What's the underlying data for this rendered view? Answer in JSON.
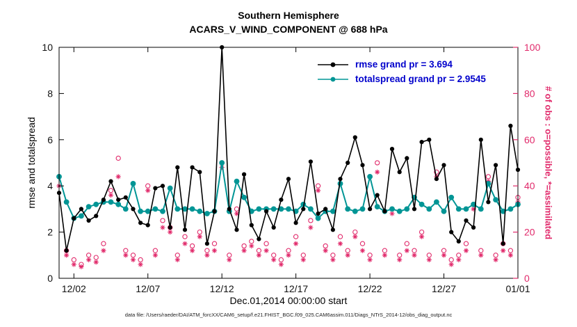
{
  "figure": {
    "title": "Southern Hemisphere",
    "subtitle": "ACARS_V_WIND_COMPONENT @ 688 hPa",
    "xlabel": "Dec.01,2014 00:00:00 start",
    "ylabel_left": "rmse and totalspread",
    "ylabel_right": "# of obs : o=possible, *=assimilated",
    "footer": "data file: /Users/raeder/DAI/ATM_forcXX/CAM6_setup/f.e21.FHIST_BGC.f09_025.CAM6assim.011/Diags_NTrS_2014-12/obs_diag_output.nc"
  },
  "legend": {
    "text_color": "#0000cc",
    "entries": [
      {
        "label": "rmse grand pr = 3.694",
        "color": "#000000",
        "marker": "filled-circle"
      },
      {
        "label": "totalspread grand pr = 2.9545",
        "color": "#009595",
        "marker": "filled-circle"
      }
    ]
  },
  "chart_data": {
    "type": "line",
    "title": "Southern Hemisphere",
    "subtitle": "ACARS_V_WIND_COMPONENT @ 688 hPa",
    "xlabel": "Dec.01,2014 00:00:00 start",
    "ylabel_left": "rmse and totalspread",
    "ylabel_right": "# of obs : o=possible, *=assimilated",
    "grid": false,
    "legend_position": "upper-right-inside",
    "xlim": [
      0,
      31
    ],
    "ylim_left": [
      0,
      10
    ],
    "ylim_right": [
      0,
      100
    ],
    "xticks": {
      "positions": [
        1,
        6,
        11,
        16,
        21,
        26,
        31
      ],
      "labels": [
        "12/02",
        "12/07",
        "12/12",
        "12/17",
        "12/22",
        "12/27",
        "01/01"
      ]
    },
    "yticks_left": [
      0,
      2,
      4,
      6,
      8,
      10
    ],
    "yticks_right": [
      0,
      20,
      40,
      60,
      80,
      100
    ],
    "x_days_since_dec01": [
      0,
      0.5,
      1,
      1.5,
      2,
      2.5,
      3,
      3.5,
      4,
      4.5,
      5,
      5.5,
      6,
      6.5,
      7,
      7.5,
      8,
      8.5,
      9,
      9.5,
      10,
      10.5,
      11,
      11.5,
      12,
      12.5,
      13,
      13.5,
      14,
      14.5,
      15,
      15.5,
      16,
      16.5,
      17,
      17.5,
      18,
      18.5,
      19,
      19.5,
      20,
      20.5,
      21,
      21.5,
      22,
      22.5,
      23,
      23.5,
      24,
      24.5,
      25,
      25.5,
      26,
      26.5,
      27,
      27.5,
      28,
      28.5,
      29,
      29.5,
      30,
      30.5,
      31
    ],
    "series": [
      {
        "name": "rmse",
        "grand_mean": 3.694,
        "axis": "left",
        "color": "#000000",
        "marker": "filled-circle",
        "values": [
          3.7,
          1.2,
          2.6,
          3.0,
          2.5,
          2.7,
          3.4,
          4.2,
          3.4,
          3.5,
          3.0,
          2.4,
          2.3,
          3.9,
          4.0,
          2.2,
          4.8,
          2.1,
          4.8,
          4.6,
          1.5,
          2.9,
          10.0,
          3.0,
          2.1,
          4.5,
          2.3,
          1.7,
          2.9,
          2.2,
          3.4,
          4.3,
          2.4,
          3.0,
          5.05,
          2.8,
          3.0,
          2.1,
          4.3,
          5.0,
          6.1,
          4.9,
          3.0,
          3.6,
          2.9,
          5.6,
          4.6,
          5.2,
          3.0,
          5.9,
          6.0,
          4.3,
          4.9,
          2.0,
          1.6,
          2.5,
          2.2,
          6.0,
          3.3,
          4.9,
          1.5,
          6.6,
          4.7
        ]
      },
      {
        "name": "totalspread",
        "grand_mean": 2.9545,
        "axis": "left",
        "color": "#009595",
        "marker": "filled-circle",
        "values": [
          4.4,
          3.3,
          2.6,
          2.7,
          3.1,
          3.2,
          3.3,
          3.3,
          3.2,
          3.0,
          4.1,
          2.9,
          2.9,
          3.0,
          2.9,
          3.9,
          3.0,
          3.0,
          3.0,
          2.9,
          2.8,
          2.9,
          5.0,
          2.9,
          4.2,
          3.5,
          2.9,
          3.0,
          3.0,
          3.0,
          3.0,
          3.0,
          2.9,
          3.2,
          3.0,
          2.6,
          2.9,
          2.9,
          4.1,
          3.0,
          2.9,
          3.0,
          4.4,
          3.1,
          2.9,
          3.0,
          2.9,
          3.0,
          3.5,
          3.2,
          3.0,
          3.3,
          2.9,
          3.5,
          3.0,
          3.0,
          3.2,
          3.0,
          4.1,
          3.4,
          2.9,
          3.0,
          3.2
        ]
      },
      {
        "name": "obs_possible",
        "axis": "right",
        "color": "#e12a6b",
        "marker": "open-circle",
        "values": [
          44,
          12,
          8,
          6,
          10,
          9,
          15,
          38,
          52,
          12,
          10,
          8,
          40,
          12,
          25,
          22,
          10,
          18,
          14,
          20,
          12,
          15,
          50,
          10,
          30,
          14,
          16,
          12,
          15,
          10,
          8,
          12,
          18,
          10,
          25,
          40,
          14,
          10,
          18,
          12,
          20,
          15,
          10,
          50,
          12,
          30,
          10,
          15,
          12,
          20,
          10,
          46,
          12,
          8,
          10,
          15,
          32,
          12,
          44,
          10,
          15,
          12,
          35
        ]
      },
      {
        "name": "obs_assimilated",
        "axis": "right",
        "color": "#e12a6b",
        "marker": "asterisk",
        "values": [
          40,
          10,
          6,
          5,
          8,
          7,
          12,
          36,
          44,
          10,
          8,
          6,
          38,
          10,
          22,
          20,
          8,
          15,
          12,
          18,
          10,
          12,
          48,
          8,
          28,
          12,
          14,
          10,
          12,
          8,
          6,
          10,
          15,
          8,
          22,
          38,
          12,
          8,
          15,
          10,
          18,
          12,
          8,
          46,
          10,
          28,
          8,
          12,
          10,
          18,
          8,
          44,
          10,
          6,
          8,
          12,
          30,
          10,
          42,
          8,
          12,
          10,
          33
        ]
      }
    ]
  }
}
